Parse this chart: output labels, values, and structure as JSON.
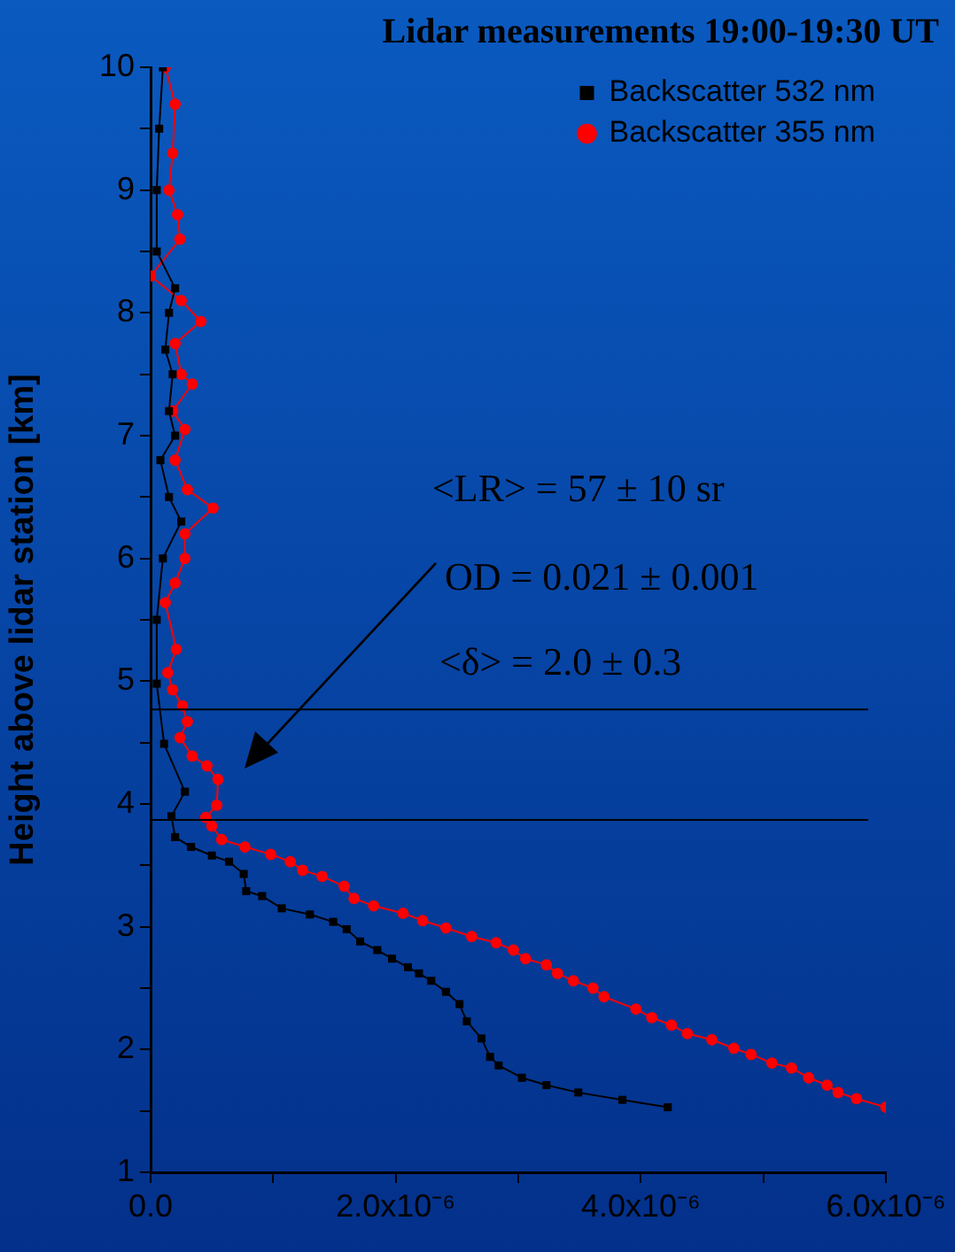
{
  "chart_data": {
    "type": "line",
    "title": "Lidar measurements 19:00-19:30 UT",
    "ylabel": "Height above lidar station [km]",
    "xlim": [
      0,
      6e-06
    ],
    "xticks": [
      {
        "value": 0,
        "label": "0.0"
      },
      {
        "value": 1e-06,
        "label": null
      },
      {
        "value": 2e-06,
        "label": "2.0x10⁻⁶"
      },
      {
        "value": 3e-06,
        "label": null
      },
      {
        "value": 4e-06,
        "label": "4.0x10⁻⁶"
      },
      {
        "value": 5e-06,
        "label": null
      },
      {
        "value": 6e-06,
        "label": "6.0x10⁻⁶"
      }
    ],
    "ylim": [
      1,
      10
    ],
    "yticks": [
      1,
      {
        "value": 1.5,
        "label": null
      },
      2,
      {
        "value": 2.5,
        "label": null
      },
      3,
      {
        "value": 3.5,
        "label": null
      },
      4,
      {
        "value": 4.5,
        "label": null
      },
      5,
      {
        "value": 5.5,
        "label": null
      },
      6,
      {
        "value": 6.5,
        "label": null
      },
      7,
      {
        "value": 7.5,
        "label": null
      },
      8,
      {
        "value": 8.5,
        "label": null
      },
      9,
      {
        "value": 9.5,
        "label": null
      },
      10
    ],
    "grid": false,
    "legend": "top right",
    "line_style": "solid",
    "series": [
      {
        "name": "Backscatter 532 nm",
        "color": "#000000",
        "marker": "square",
        "x": [
          1e-07,
          7e-08,
          5e-08,
          5e-08,
          2e-07,
          1.5e-07,
          1.2e-07,
          1.8e-07,
          1.5e-07,
          2e-07,
          8e-08,
          1.5e-07,
          2.5e-07,
          1e-07,
          5e-08,
          5e-08,
          1.1e-07,
          2.8e-07,
          1.7e-07,
          2e-07,
          3.3e-07,
          5e-07,
          6.4e-07,
          7.6e-07,
          7.8e-07,
          9.1e-07,
          1.07e-06,
          1.3e-06,
          1.49e-06,
          1.6e-06,
          1.71e-06,
          1.85e-06,
          1.97e-06,
          2.1e-06,
          2.19e-06,
          2.29e-06,
          2.41e-06,
          2.52e-06,
          2.58e-06,
          2.7e-06,
          2.77e-06,
          2.84e-06,
          3.03e-06,
          3.23e-06,
          3.49e-06,
          3.85e-06,
          4.22e-06
        ],
        "values": [
          10,
          9.5,
          9,
          8.5,
          8.2,
          8,
          7.7,
          7.5,
          7.2,
          7,
          6.8,
          6.5,
          6.3,
          6,
          5.5,
          4.98,
          4.49,
          4.1,
          3.9,
          3.73,
          3.65,
          3.58,
          3.53,
          3.43,
          3.29,
          3.25,
          3.15,
          3.1,
          3.04,
          2.98,
          2.88,
          2.81,
          2.74,
          2.67,
          2.62,
          2.56,
          2.47,
          2.37,
          2.23,
          2.09,
          1.94,
          1.87,
          1.77,
          1.71,
          1.65,
          1.59,
          1.53
        ]
      },
      {
        "name": "Backscatter 355 nm",
        "color": "#ff0000",
        "marker": "circle",
        "x": [
          1.2e-07,
          2e-07,
          1.8e-07,
          1.5e-07,
          2.2e-07,
          2.4e-07,
          0,
          2.5e-07,
          4.1e-07,
          2e-07,
          2.5e-07,
          3.4e-07,
          1.8e-07,
          2.8e-07,
          2e-07,
          3e-07,
          5.1e-07,
          2.8e-07,
          2.8e-07,
          2e-07,
          1.2e-07,
          2.1e-07,
          1.4e-07,
          1.8e-07,
          2.6e-07,
          3e-07,
          2.4e-07,
          3.4e-07,
          4.6e-07,
          5.5e-07,
          5.4e-07,
          4.5e-07,
          5e-07,
          5.8e-07,
          7.7e-07,
          9.8e-07,
          1.14e-06,
          1.24e-06,
          1.4e-06,
          1.58e-06,
          1.66e-06,
          1.82e-06,
          2.06e-06,
          2.22e-06,
          2.41e-06,
          2.62e-06,
          2.82e-06,
          2.96e-06,
          3.06e-06,
          3.23e-06,
          3.32e-06,
          3.45e-06,
          3.61e-06,
          3.7e-06,
          3.96e-06,
          4.09e-06,
          4.25e-06,
          4.38e-06,
          4.58e-06,
          4.76e-06,
          4.9e-06,
          5.07e-06,
          5.23e-06,
          5.37e-06,
          5.52e-06,
          5.61e-06,
          5.76e-06,
          6e-06
        ],
        "values": [
          10,
          9.7,
          9.3,
          9,
          8.8,
          8.6,
          8.3,
          8.1,
          7.93,
          7.75,
          7.5,
          7.42,
          7.2,
          7.05,
          6.8,
          6.56,
          6.41,
          6.2,
          6,
          5.8,
          5.64,
          5.26,
          5.07,
          4.93,
          4.8,
          4.67,
          4.54,
          4.39,
          4.31,
          4.2,
          3.99,
          3.89,
          3.82,
          3.71,
          3.65,
          3.59,
          3.53,
          3.46,
          3.41,
          3.33,
          3.23,
          3.17,
          3.11,
          3.05,
          2.99,
          2.92,
          2.87,
          2.81,
          2.74,
          2.69,
          2.62,
          2.56,
          2.5,
          2.43,
          2.33,
          2.26,
          2.2,
          2.13,
          2.08,
          2.01,
          1.96,
          1.89,
          1.85,
          1.77,
          1.71,
          1.65,
          1.6,
          1.53
        ]
      }
    ],
    "ref_lines": [
      {
        "axis": "y",
        "value": 4.77,
        "color": "#000000"
      },
      {
        "axis": "y",
        "value": 3.87,
        "color": "#000000"
      }
    ],
    "annotations": [
      "<LR> = 57 ± 10 sr",
      "OD = 0.021 ± 0.001",
      "<δ> = 2.0 ± 0.3"
    ]
  }
}
